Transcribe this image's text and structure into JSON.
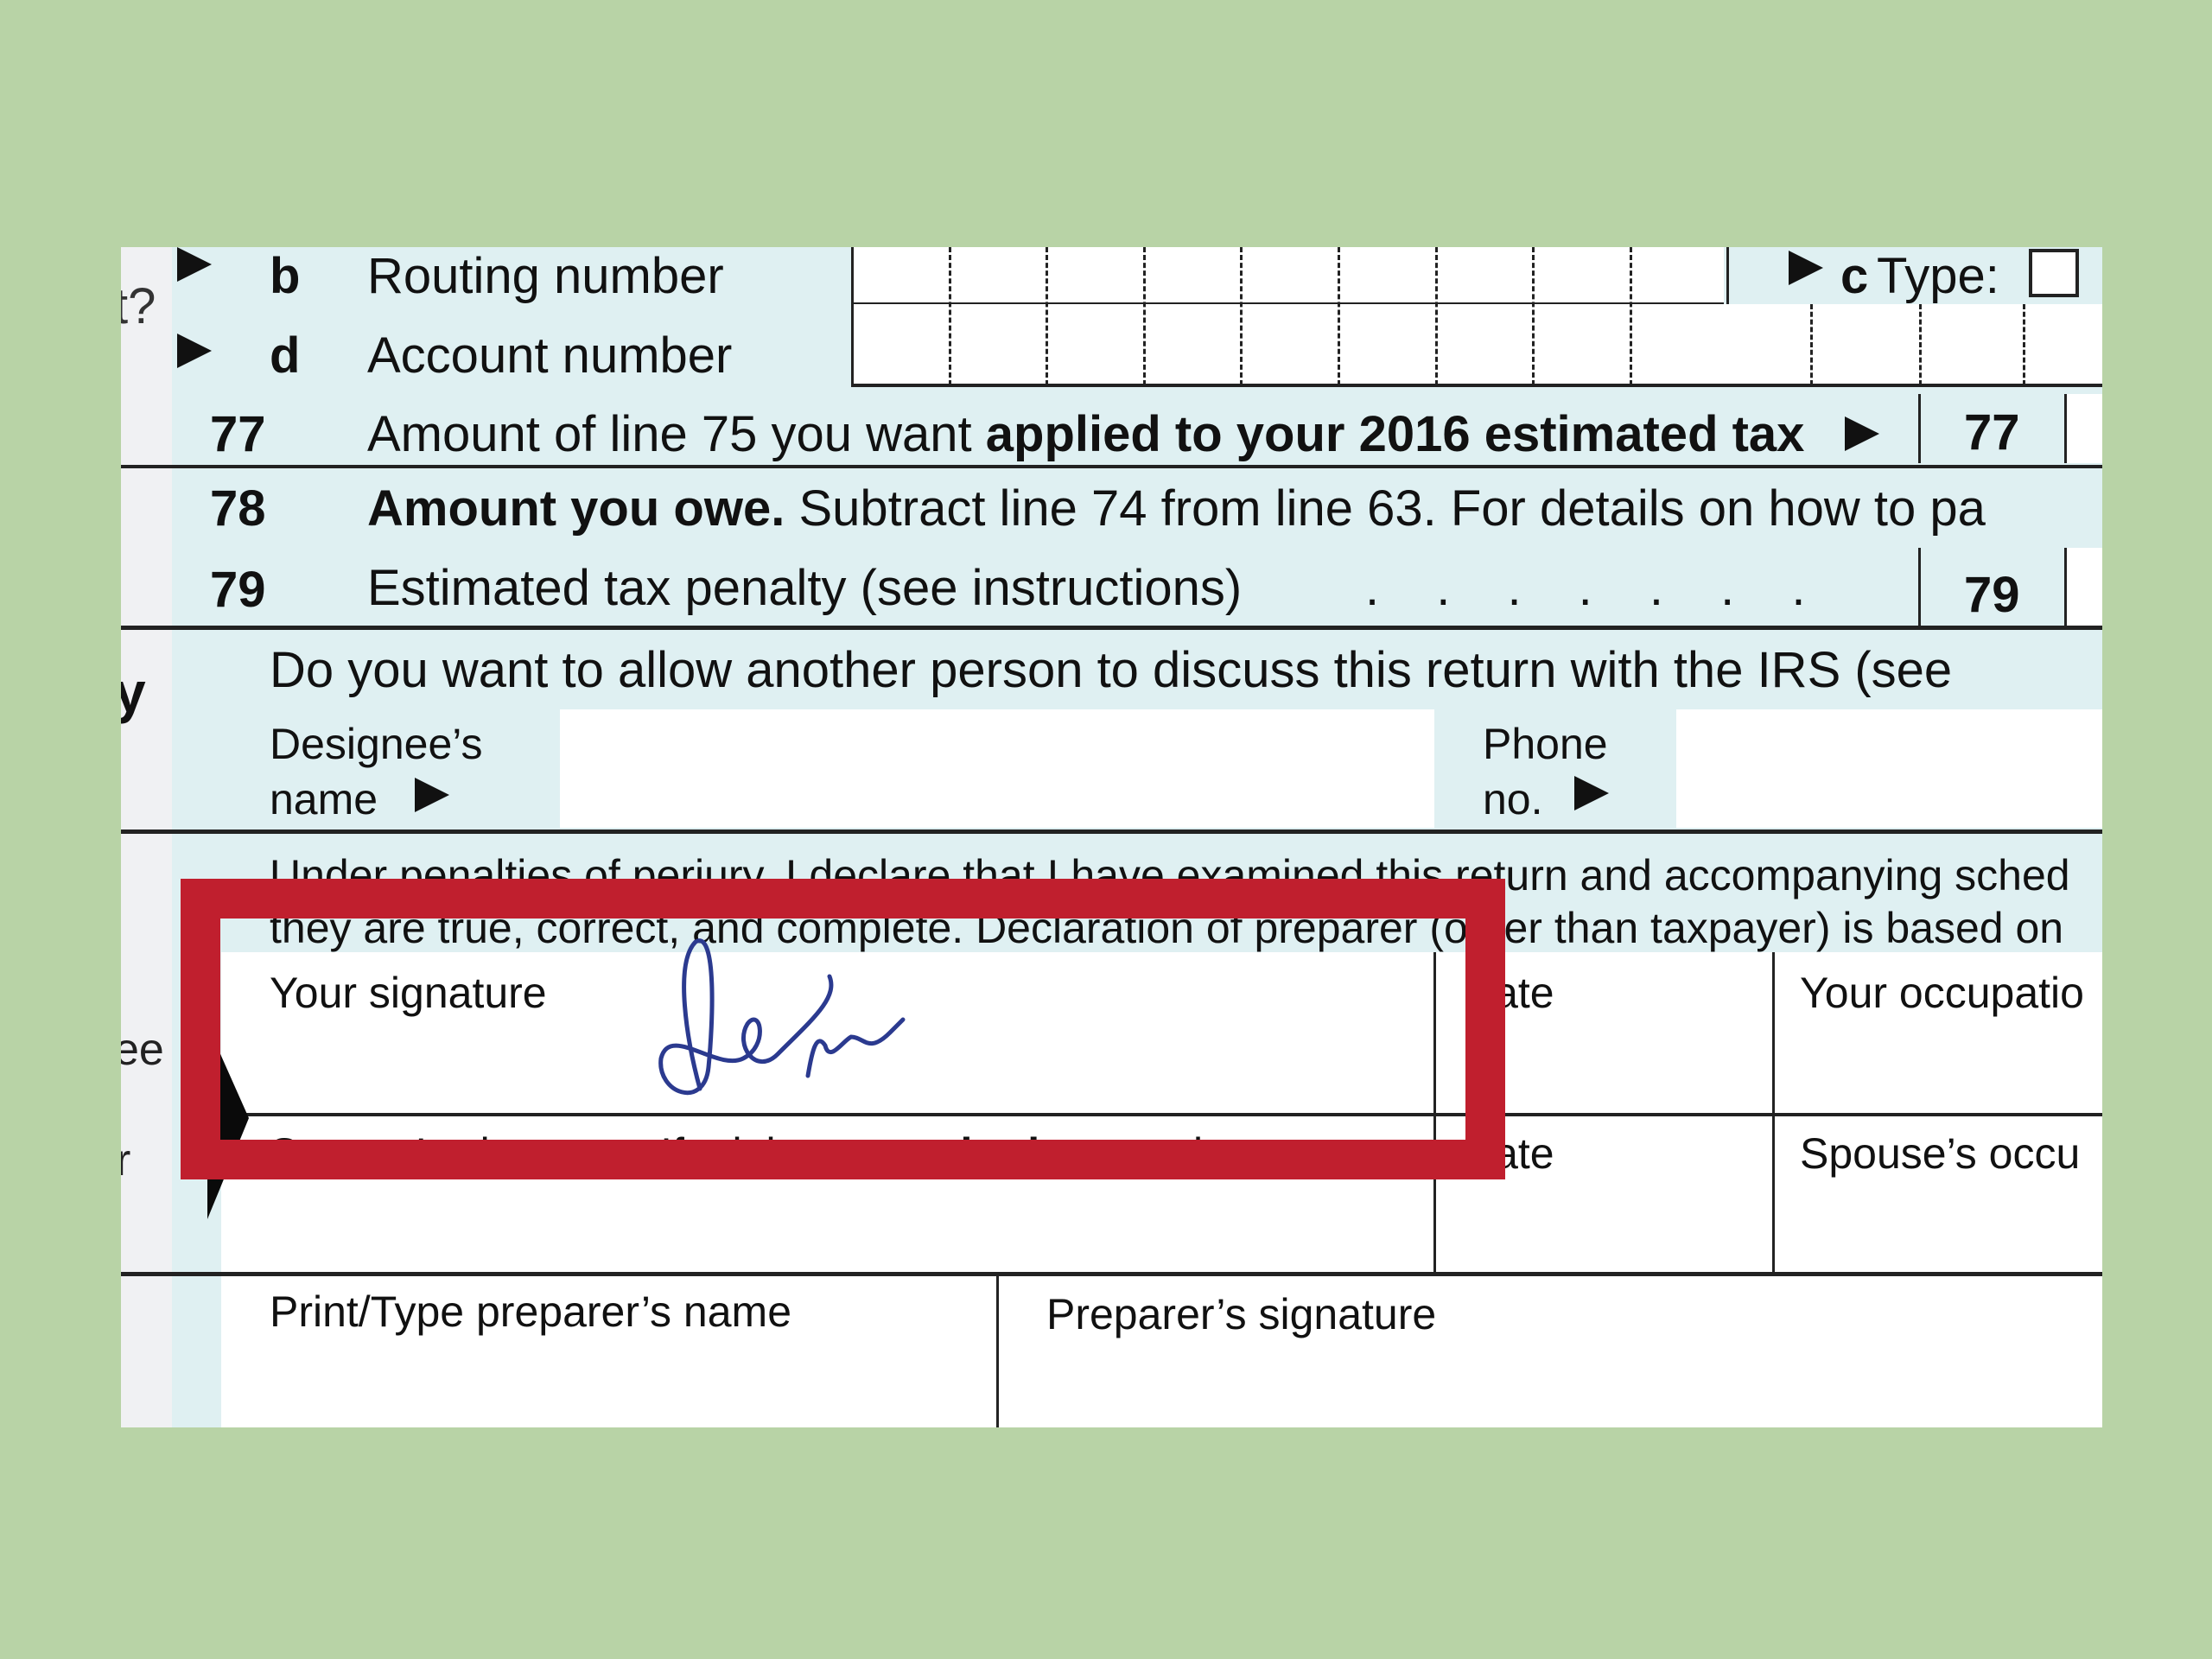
{
  "form": {
    "left_margin": {
      "q_fragment": "t?",
      "section_fragment": "ty",
      "sign_fragment": "ee",
      "sign_fragment2": "r"
    },
    "line_76b": {
      "letter": "b",
      "label": "Routing number"
    },
    "line_76c": {
      "letter": "c",
      "label": "Type:"
    },
    "line_76d": {
      "letter": "d",
      "label": "Account number"
    },
    "line_77": {
      "number": "77",
      "text_prefix": "Amount of line 75 you want ",
      "text_bold": "applied to your 2016 estimated tax",
      "box_label": "77"
    },
    "line_78": {
      "number": "78",
      "text_bold": "Amount you owe.",
      "text_rest": " Subtract line 74 from line 63. For details on how to pa"
    },
    "line_79": {
      "number": "79",
      "text": "Estimated tax penalty (see instructions)",
      "leaders": ". . . . . . .",
      "box_label": "79"
    },
    "third_party": {
      "question": "Do you want to allow another person to discuss this return with the IRS (see",
      "designee_label_1": "Designee’s",
      "designee_label_2": "name",
      "designee_value": "",
      "phone_label_1": "Phone",
      "phone_label_2": "no.",
      "phone_value": ""
    },
    "sign_here": {
      "perjury_line_1": "Under penalties of perjury, I declare that I have examined this return and accompanying sched",
      "perjury_line_2": "they are true, correct, and complete. Declaration of preparer (other than taxpayer) is based on",
      "your_signature_label": "Your signature",
      "date_label": "Date",
      "your_occupation_label": "Your occupatio",
      "spouse_signature_label_prefix": "Spouse’s signature. If a joint return, ",
      "spouse_signature_label_bold": "both",
      "spouse_signature_label_suffix": " must sign.",
      "spouse_date_label": "Date",
      "spouse_occupation_label": "Spouse’s occu"
    },
    "preparer": {
      "name_label": "Print/Type preparer’s name",
      "signature_label": "Preparer’s signature"
    }
  },
  "highlight": {
    "color": "#c01f2e",
    "target": "your-signature"
  },
  "signature_ink_color": "#2b3a8f"
}
